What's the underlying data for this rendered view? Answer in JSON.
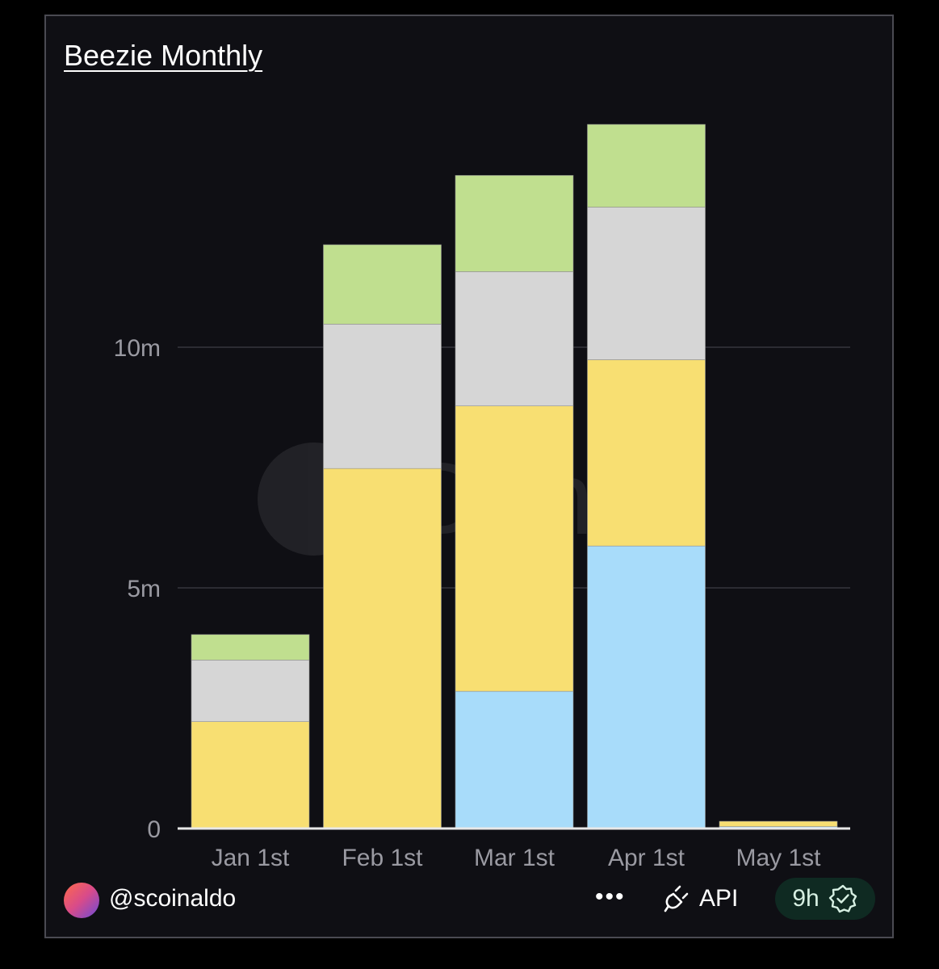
{
  "title": "Beezie Monthly",
  "watermark": "Dune",
  "colors": {
    "background": "#0f0f14",
    "gridline": "#2c2c33",
    "axis": "#e8e8e8",
    "tick_text": "#9a9aa2",
    "series": [
      "#a8dcfa",
      "#f8df72",
      "#d6d6d6",
      "#c0df8f"
    ],
    "badge_bg": "#0f2a22"
  },
  "chart_data": {
    "type": "bar",
    "stacked": true,
    "categories": [
      "Jan 1st",
      "Feb 1st",
      "Mar 1st",
      "Apr 1st",
      "May 1st"
    ],
    "series": [
      {
        "values": [
          0,
          0,
          2.85,
          5.87,
          0.04
        ]
      },
      {
        "values": [
          2.22,
          7.48,
          5.93,
          3.87,
          0.11
        ]
      },
      {
        "values": [
          1.28,
          3.0,
          2.79,
          3.17,
          0
        ]
      },
      {
        "values": [
          0.53,
          1.65,
          2.0,
          1.72,
          0
        ]
      }
    ],
    "y_ticks": [
      {
        "value": 0,
        "label": "0"
      },
      {
        "value": 5,
        "label": "5m"
      },
      {
        "value": 10,
        "label": "10m"
      }
    ],
    "ylim": [
      0,
      14
    ],
    "grid": true,
    "legend": "none"
  },
  "footer": {
    "username": "@scoinaldo",
    "more": "•••",
    "api_label": "API",
    "age": "9h",
    "icons": [
      "avatar",
      "more-icon",
      "plug-icon",
      "verified-icon"
    ]
  }
}
